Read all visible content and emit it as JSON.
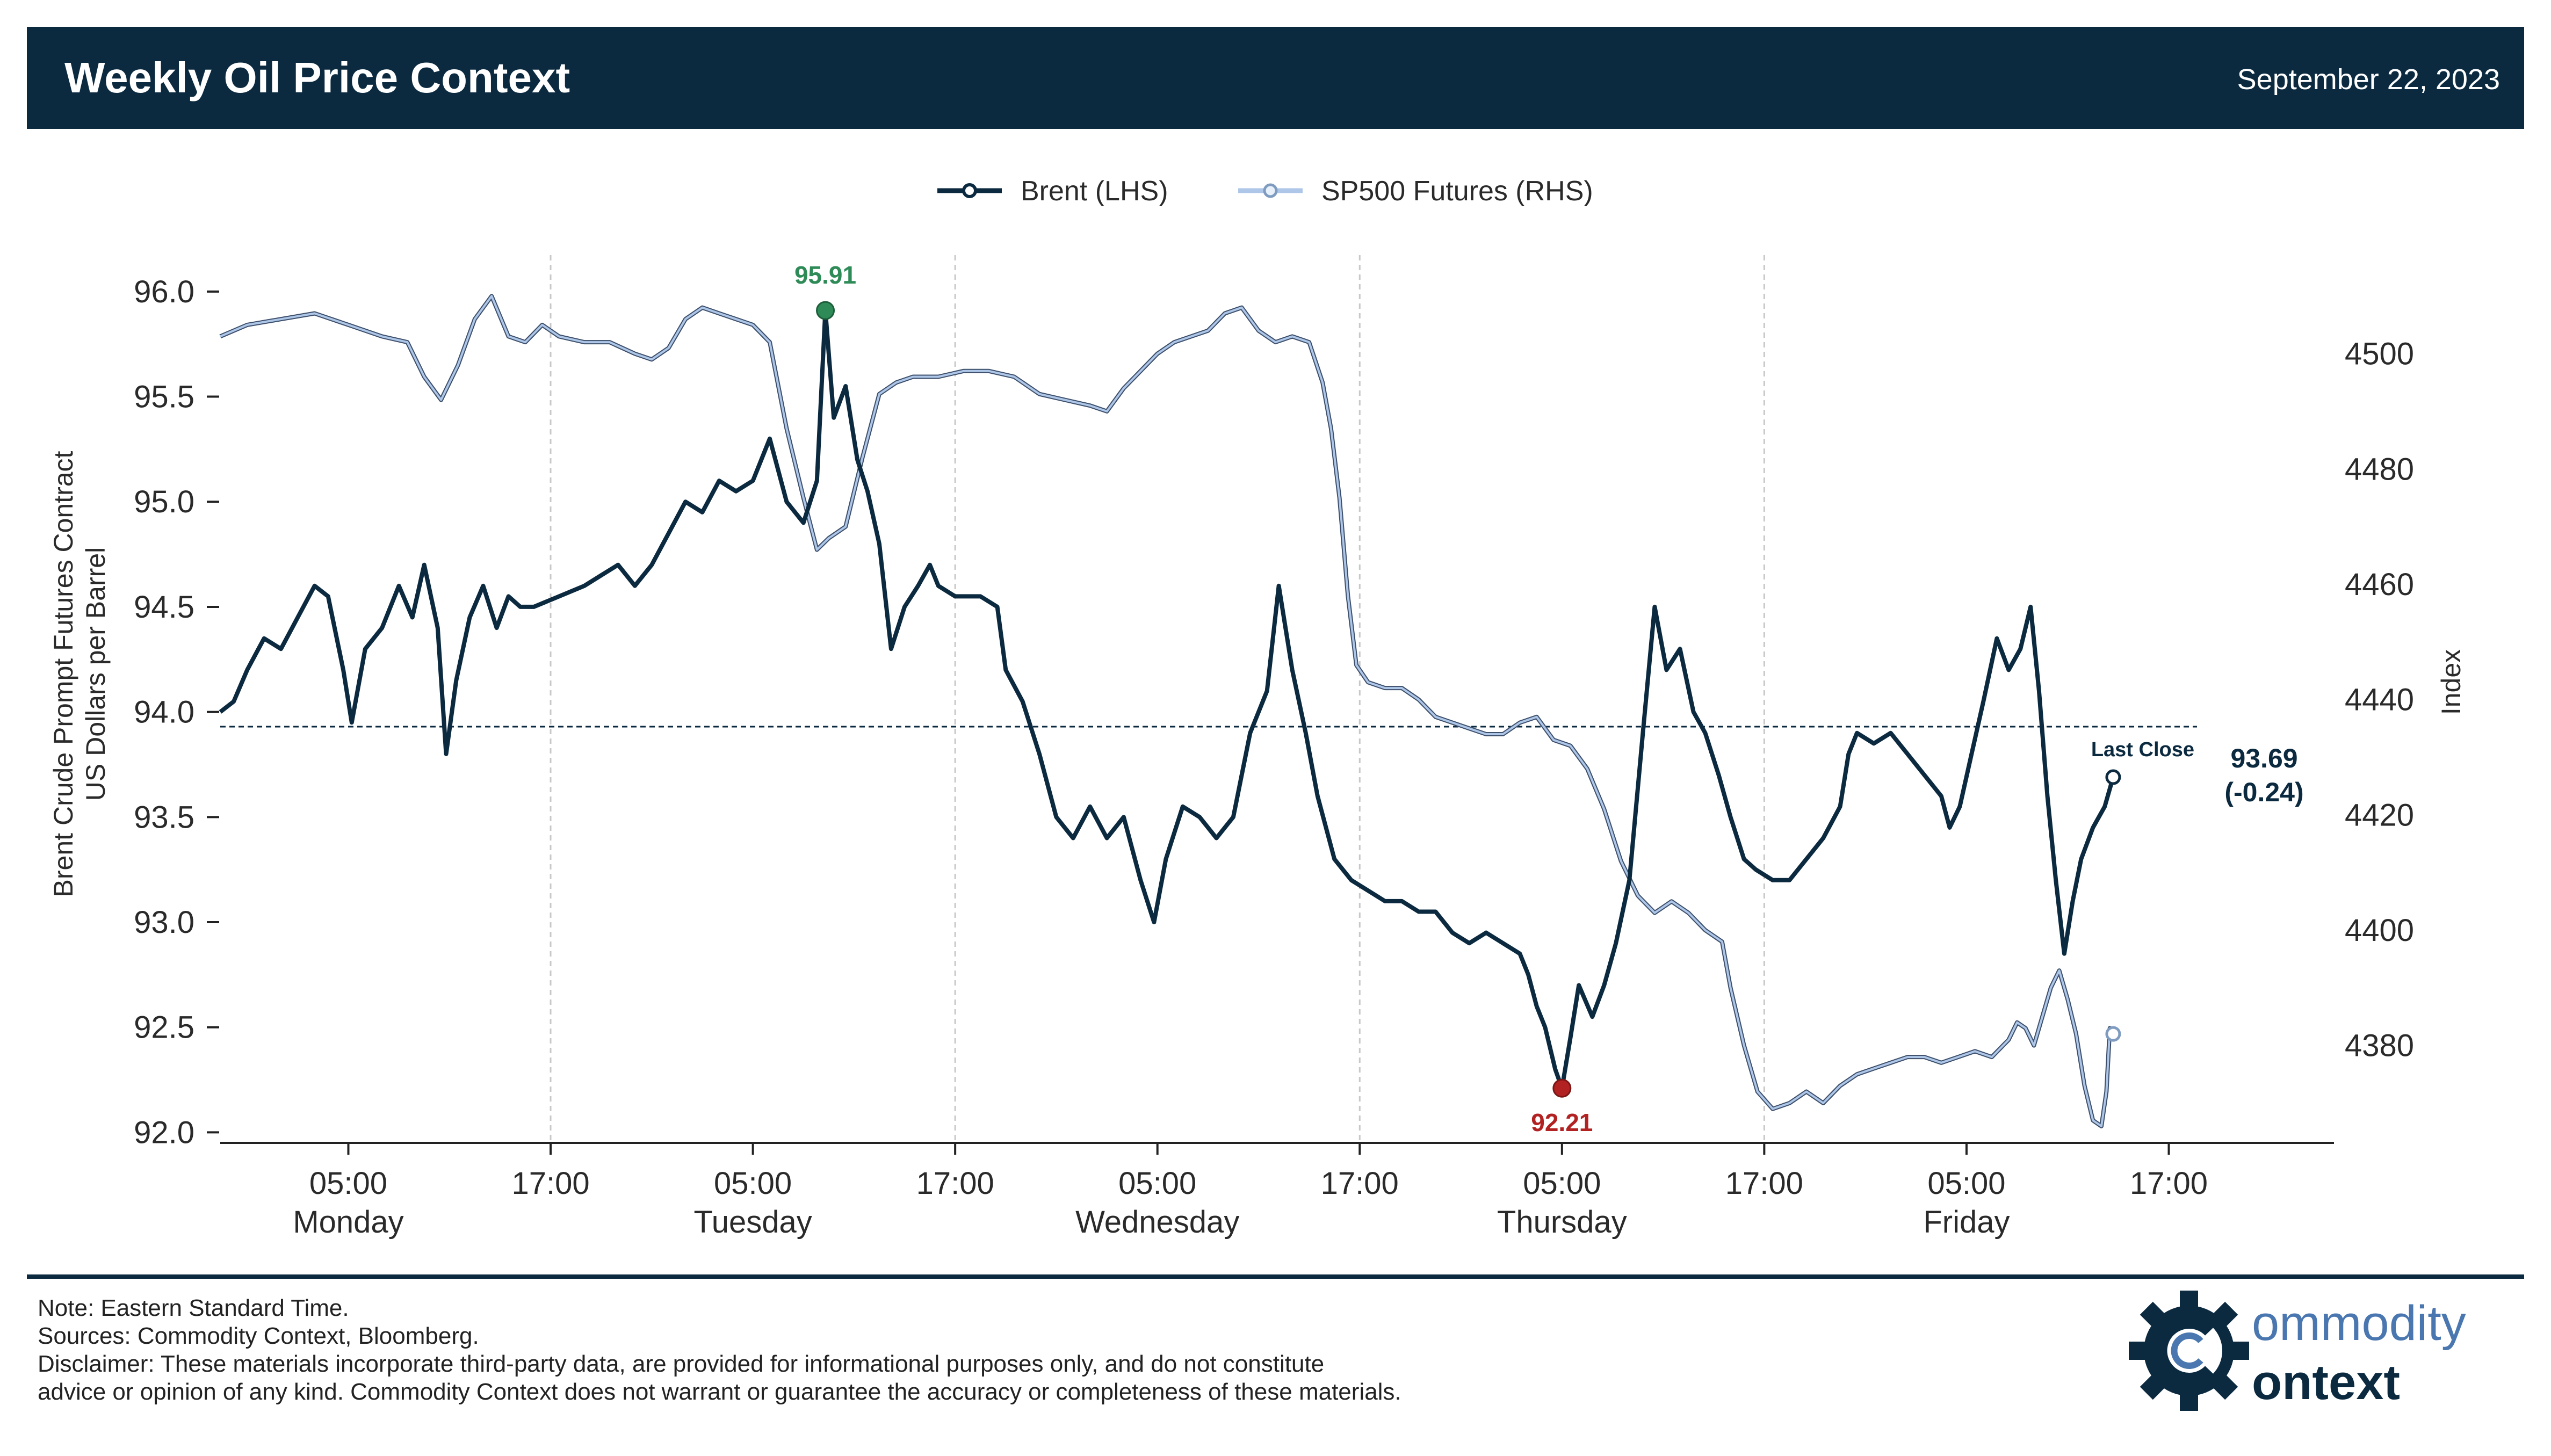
{
  "header": {
    "title": "Weekly Oil Price Context",
    "date": "September 22, 2023",
    "bg_color": "#0b2a40"
  },
  "chart_data": {
    "type": "line",
    "legend": {
      "placement": "top-center",
      "entries": [
        "Brent (LHS)",
        "SP500 Futures (RHS)"
      ]
    },
    "left_axis": {
      "label_line1": "Brent Crude Prompt Futures Contract",
      "label_line2": "US Dollars per Barrel",
      "ylim": [
        91.95,
        96.25
      ],
      "ticks": [
        92.0,
        92.5,
        93.0,
        93.5,
        94.0,
        94.5,
        95.0,
        95.5,
        96.0
      ],
      "tick_labels": [
        "92.0",
        "92.5",
        "93.0",
        "93.5",
        "94.0",
        "94.5",
        "95.0",
        "95.5",
        "96.0"
      ]
    },
    "right_axis": {
      "label": "Index",
      "ylim": [
        4363.1,
        4519.9
      ],
      "ticks": [
        4380,
        4400,
        4420,
        4440,
        4460,
        4480,
        4500
      ],
      "tick_labels": [
        "4380",
        "4400",
        "4420",
        "4440",
        "4460",
        "4480",
        "4500"
      ]
    },
    "x_axis": {
      "range_hours": [
        -7.6,
        117.8
      ],
      "ticks": [
        {
          "h": 0,
          "time": "05:00",
          "day": "Monday"
        },
        {
          "h": 12,
          "time": "17:00",
          "day": ""
        },
        {
          "h": 24,
          "time": "05:00",
          "day": "Tuesday"
        },
        {
          "h": 36,
          "time": "17:00",
          "day": ""
        },
        {
          "h": 48,
          "time": "05:00",
          "day": "Wednesday"
        },
        {
          "h": 60,
          "time": "17:00",
          "day": ""
        },
        {
          "h": 72,
          "time": "05:00",
          "day": "Thursday"
        },
        {
          "h": 84,
          "time": "17:00",
          "day": ""
        },
        {
          "h": 96,
          "time": "05:00",
          "day": "Friday"
        },
        {
          "h": 108,
          "time": "17:00",
          "day": ""
        }
      ],
      "vgrid_hours": [
        12,
        36,
        60,
        84
      ]
    },
    "series": [
      {
        "name": "Brent (LHS)",
        "axis": "left",
        "color": "#0b2a40",
        "points": [
          [
            -7.6,
            94.0
          ],
          [
            -6.8,
            94.05
          ],
          [
            -6.0,
            94.2
          ],
          [
            -5.0,
            94.35
          ],
          [
            -4.0,
            94.3
          ],
          [
            -3.0,
            94.45
          ],
          [
            -2.0,
            94.6
          ],
          [
            -1.2,
            94.55
          ],
          [
            -0.3,
            94.2
          ],
          [
            0.2,
            93.95
          ],
          [
            1.0,
            94.3
          ],
          [
            2.0,
            94.4
          ],
          [
            3.0,
            94.6
          ],
          [
            3.8,
            94.45
          ],
          [
            4.5,
            94.7
          ],
          [
            5.3,
            94.4
          ],
          [
            5.8,
            93.8
          ],
          [
            6.4,
            94.15
          ],
          [
            7.2,
            94.45
          ],
          [
            8.0,
            94.6
          ],
          [
            8.8,
            94.4
          ],
          [
            9.5,
            94.55
          ],
          [
            10.2,
            94.5
          ],
          [
            11.0,
            94.5
          ],
          [
            12.5,
            94.55
          ],
          [
            14.0,
            94.6
          ],
          [
            15.0,
            94.65
          ],
          [
            16.0,
            94.7
          ],
          [
            17.0,
            94.6
          ],
          [
            18.0,
            94.7
          ],
          [
            19.0,
            94.85
          ],
          [
            20.0,
            95.0
          ],
          [
            21.0,
            94.95
          ],
          [
            22.0,
            95.1
          ],
          [
            23.0,
            95.05
          ],
          [
            24.0,
            95.1
          ],
          [
            25.0,
            95.3
          ],
          [
            26.0,
            95.0
          ],
          [
            27.0,
            94.9
          ],
          [
            27.8,
            95.1
          ],
          [
            28.3,
            95.91
          ],
          [
            28.8,
            95.4
          ],
          [
            29.5,
            95.55
          ],
          [
            30.2,
            95.2
          ],
          [
            30.8,
            95.05
          ],
          [
            31.5,
            94.8
          ],
          [
            32.2,
            94.3
          ],
          [
            33.0,
            94.5
          ],
          [
            33.8,
            94.6
          ],
          [
            34.5,
            94.7
          ],
          [
            35.0,
            94.6
          ],
          [
            36.0,
            94.55
          ],
          [
            37.5,
            94.55
          ],
          [
            38.5,
            94.5
          ],
          [
            39.0,
            94.2
          ],
          [
            40.0,
            94.05
          ],
          [
            41.0,
            93.8
          ],
          [
            42.0,
            93.5
          ],
          [
            43.0,
            93.4
          ],
          [
            44.0,
            93.55
          ],
          [
            45.0,
            93.4
          ],
          [
            46.0,
            93.5
          ],
          [
            47.0,
            93.2
          ],
          [
            47.8,
            93.0
          ],
          [
            48.5,
            93.3
          ],
          [
            49.5,
            93.55
          ],
          [
            50.5,
            93.5
          ],
          [
            51.5,
            93.4
          ],
          [
            52.5,
            93.5
          ],
          [
            53.5,
            93.9
          ],
          [
            54.5,
            94.1
          ],
          [
            55.2,
            94.6
          ],
          [
            56.0,
            94.2
          ],
          [
            56.8,
            93.9
          ],
          [
            57.5,
            93.6
          ],
          [
            58.5,
            93.3
          ],
          [
            59.5,
            93.2
          ],
          [
            60.5,
            93.15
          ],
          [
            61.5,
            93.1
          ],
          [
            62.5,
            93.1
          ],
          [
            63.5,
            93.05
          ],
          [
            64.5,
            93.05
          ],
          [
            65.5,
            92.95
          ],
          [
            66.5,
            92.9
          ],
          [
            67.5,
            92.95
          ],
          [
            68.5,
            92.9
          ],
          [
            69.5,
            92.85
          ],
          [
            70.0,
            92.75
          ],
          [
            70.5,
            92.6
          ],
          [
            71.0,
            92.5
          ],
          [
            71.6,
            92.3
          ],
          [
            72.0,
            92.21
          ],
          [
            72.5,
            92.45
          ],
          [
            73.0,
            92.7
          ],
          [
            73.8,
            92.55
          ],
          [
            74.5,
            92.7
          ],
          [
            75.2,
            92.9
          ],
          [
            76.0,
            93.2
          ],
          [
            76.8,
            93.9
          ],
          [
            77.5,
            94.5
          ],
          [
            78.2,
            94.2
          ],
          [
            79.0,
            94.3
          ],
          [
            79.8,
            94.0
          ],
          [
            80.5,
            93.9
          ],
          [
            81.3,
            93.7
          ],
          [
            82.0,
            93.5
          ],
          [
            82.8,
            93.3
          ],
          [
            83.5,
            93.25
          ],
          [
            84.5,
            93.2
          ],
          [
            85.5,
            93.2
          ],
          [
            86.5,
            93.3
          ],
          [
            87.5,
            93.4
          ],
          [
            88.5,
            93.55
          ],
          [
            89.0,
            93.8
          ],
          [
            89.5,
            93.9
          ],
          [
            90.5,
            93.85
          ],
          [
            91.5,
            93.9
          ],
          [
            92.5,
            93.8
          ],
          [
            93.5,
            93.7
          ],
          [
            94.5,
            93.6
          ],
          [
            95.0,
            93.45
          ],
          [
            95.6,
            93.55
          ],
          [
            96.3,
            93.8
          ],
          [
            97.0,
            94.05
          ],
          [
            97.8,
            94.35
          ],
          [
            98.5,
            94.2
          ],
          [
            99.2,
            94.3
          ],
          [
            99.8,
            94.5
          ],
          [
            100.3,
            94.1
          ],
          [
            100.8,
            93.6
          ],
          [
            101.3,
            93.2
          ],
          [
            101.8,
            92.85
          ],
          [
            102.3,
            93.1
          ],
          [
            102.8,
            93.3
          ],
          [
            103.5,
            93.45
          ],
          [
            104.2,
            93.55
          ],
          [
            104.7,
            93.69
          ]
        ]
      },
      {
        "name": "SP500 Futures (RHS)",
        "axis": "right",
        "color": "#aec7e8",
        "points": [
          [
            -7.6,
            4503
          ],
          [
            -6.0,
            4505
          ],
          [
            -4.0,
            4506
          ],
          [
            -2.0,
            4507
          ],
          [
            0.0,
            4505
          ],
          [
            2.0,
            4503
          ],
          [
            3.5,
            4502
          ],
          [
            4.5,
            4496
          ],
          [
            5.5,
            4492
          ],
          [
            6.5,
            4498
          ],
          [
            7.5,
            4506
          ],
          [
            8.5,
            4510
          ],
          [
            9.5,
            4503
          ],
          [
            10.5,
            4502
          ],
          [
            11.5,
            4505
          ],
          [
            12.5,
            4503
          ],
          [
            14.0,
            4502
          ],
          [
            15.5,
            4502
          ],
          [
            17.0,
            4500
          ],
          [
            18.0,
            4499
          ],
          [
            19.0,
            4501
          ],
          [
            20.0,
            4506
          ],
          [
            21.0,
            4508
          ],
          [
            22.0,
            4507
          ],
          [
            23.0,
            4506
          ],
          [
            24.0,
            4505
          ],
          [
            25.0,
            4502
          ],
          [
            26.0,
            4487
          ],
          [
            27.0,
            4475
          ],
          [
            27.8,
            4466
          ],
          [
            28.5,
            4468
          ],
          [
            29.5,
            4470
          ],
          [
            30.5,
            4482
          ],
          [
            31.5,
            4493
          ],
          [
            32.5,
            4495
          ],
          [
            33.5,
            4496
          ],
          [
            35.0,
            4496
          ],
          [
            36.5,
            4497
          ],
          [
            38.0,
            4497
          ],
          [
            39.5,
            4496
          ],
          [
            41.0,
            4493
          ],
          [
            42.5,
            4492
          ],
          [
            44.0,
            4491
          ],
          [
            45.0,
            4490
          ],
          [
            46.0,
            4494
          ],
          [
            47.0,
            4497
          ],
          [
            48.0,
            4500
          ],
          [
            49.0,
            4502
          ],
          [
            50.0,
            4503
          ],
          [
            51.0,
            4504
          ],
          [
            52.0,
            4507
          ],
          [
            53.0,
            4508
          ],
          [
            54.0,
            4504
          ],
          [
            55.0,
            4502
          ],
          [
            56.0,
            4503
          ],
          [
            57.0,
            4502
          ],
          [
            57.8,
            4495
          ],
          [
            58.3,
            4487
          ],
          [
            58.8,
            4475
          ],
          [
            59.3,
            4458
          ],
          [
            59.8,
            4446
          ],
          [
            60.5,
            4443
          ],
          [
            61.5,
            4442
          ],
          [
            62.5,
            4442
          ],
          [
            63.5,
            4440
          ],
          [
            64.5,
            4437
          ],
          [
            65.5,
            4436
          ],
          [
            66.5,
            4435
          ],
          [
            67.5,
            4434
          ],
          [
            68.5,
            4434
          ],
          [
            69.5,
            4436
          ],
          [
            70.5,
            4437
          ],
          [
            71.5,
            4433
          ],
          [
            72.5,
            4432
          ],
          [
            73.5,
            4428
          ],
          [
            74.5,
            4421
          ],
          [
            75.5,
            4412
          ],
          [
            76.5,
            4406
          ],
          [
            77.5,
            4403
          ],
          [
            78.5,
            4405
          ],
          [
            79.5,
            4403
          ],
          [
            80.5,
            4400
          ],
          [
            81.5,
            4398
          ],
          [
            82.0,
            4390
          ],
          [
            82.8,
            4380
          ],
          [
            83.6,
            4372
          ],
          [
            84.5,
            4369
          ],
          [
            85.5,
            4370
          ],
          [
            86.5,
            4372
          ],
          [
            87.5,
            4370
          ],
          [
            88.5,
            4373
          ],
          [
            89.5,
            4375
          ],
          [
            90.5,
            4376
          ],
          [
            91.5,
            4377
          ],
          [
            92.5,
            4378
          ],
          [
            93.5,
            4378
          ],
          [
            94.5,
            4377
          ],
          [
            95.5,
            4378
          ],
          [
            96.5,
            4379
          ],
          [
            97.5,
            4378
          ],
          [
            98.5,
            4381
          ],
          [
            99.0,
            4384
          ],
          [
            99.5,
            4383
          ],
          [
            100.0,
            4380
          ],
          [
            100.5,
            4385
          ],
          [
            101.0,
            4390
          ],
          [
            101.5,
            4393
          ],
          [
            102.0,
            4388
          ],
          [
            102.5,
            4382
          ],
          [
            103.0,
            4373
          ],
          [
            103.5,
            4367
          ],
          [
            104.0,
            4366
          ],
          [
            104.3,
            4372
          ],
          [
            104.5,
            4383
          ],
          [
            104.7,
            4382
          ]
        ]
      }
    ],
    "reference_line": {
      "value": 93.93,
      "axis": "left",
      "label": "Last Close"
    },
    "annotations": {
      "high": {
        "label": "95.91",
        "x": 28.3,
        "y": 95.91,
        "color": "#2e8b57"
      },
      "low": {
        "label": "92.21",
        "x": 72.0,
        "y": 92.21,
        "color": "#b22222"
      },
      "last_value_line1": "93.69",
      "last_value_line2": "(-0.24)"
    }
  },
  "footer": {
    "note": "Note: Eastern Standard Time.",
    "sources": "Sources: Commodity Context, Bloomberg.",
    "disclaimer1": "Disclaimer: These materials incorporate third-party data, are provided for informational purposes only, and do not constitute",
    "disclaimer2": "advice or opinion of any kind. Commodity Context does not warrant or guarantee the accuracy or completeness of these materials."
  },
  "logo": {
    "word1": "ommodity",
    "word2": "ontext",
    "primary_color": "#0b2a40",
    "accent_color": "#4a77b0"
  }
}
